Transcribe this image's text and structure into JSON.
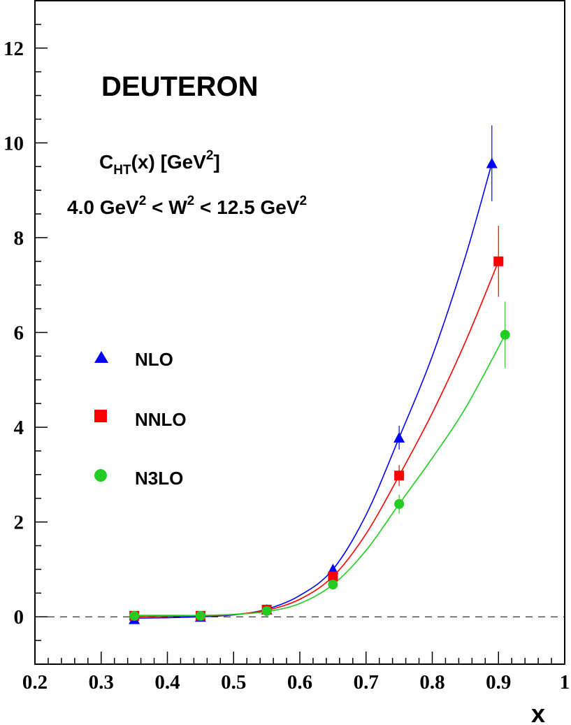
{
  "chart_data": {
    "type": "line",
    "title": "DEUTERON",
    "annotations": {
      "quantity": "C",
      "quantity_sub": "HT",
      "quantity_arg": "(x) [GeV",
      "quantity_sup": "2",
      "quantity_close": "]",
      "range_part1": "4.0 GeV",
      "range_sup1": "2",
      "range_part2": " < W",
      "range_sup2": "2",
      "range_part3": " < 12.5 GeV",
      "range_sup3": "2"
    },
    "xlabel": "x",
    "ylabel": "",
    "xlim": [
      0.2,
      1.0
    ],
    "ylim": [
      -1,
      13
    ],
    "x_ticks": [
      0.2,
      0.3,
      0.4,
      0.5,
      0.6,
      0.7,
      0.8,
      0.9,
      1.0
    ],
    "x_tick_labels": [
      "0.2",
      "0.3",
      "0.4",
      "0.5",
      "0.6",
      "0.7",
      "0.8",
      "0.9",
      "1"
    ],
    "y_ticks": [
      0,
      2,
      4,
      6,
      8,
      10,
      12
    ],
    "y_tick_labels": [
      "0",
      "2",
      "4",
      "6",
      "8",
      "10",
      "12"
    ],
    "zero_line": true,
    "grid": false,
    "legend_position": "left",
    "series": [
      {
        "name": "NLO",
        "marker": "triangle",
        "color": "#0000ff",
        "points": [
          {
            "x": 0.35,
            "y": -0.05,
            "err": 0.04
          },
          {
            "x": 0.45,
            "y": 0.0,
            "err": 0.04
          },
          {
            "x": 0.55,
            "y": 0.15,
            "err": 0.05
          },
          {
            "x": 0.65,
            "y": 1.0,
            "err": 0.1
          },
          {
            "x": 0.75,
            "y": 3.78,
            "err": 0.25
          },
          {
            "x": 0.89,
            "y": 9.57,
            "err": 0.8
          }
        ],
        "curve": [
          [
            0.35,
            -0.03
          ],
          [
            0.4,
            -0.02
          ],
          [
            0.45,
            0.0
          ],
          [
            0.5,
            0.04
          ],
          [
            0.55,
            0.16
          ],
          [
            0.6,
            0.45
          ],
          [
            0.65,
            1.0
          ],
          [
            0.7,
            2.15
          ],
          [
            0.75,
            3.78
          ],
          [
            0.8,
            5.5
          ],
          [
            0.85,
            7.6
          ],
          [
            0.89,
            9.57
          ]
        ]
      },
      {
        "name": "NNLO",
        "marker": "square",
        "color": "#ff0000",
        "points": [
          {
            "x": 0.35,
            "y": 0.02,
            "err": 0.04
          },
          {
            "x": 0.45,
            "y": 0.02,
            "err": 0.04
          },
          {
            "x": 0.55,
            "y": 0.15,
            "err": 0.05
          },
          {
            "x": 0.65,
            "y": 0.85,
            "err": 0.1
          },
          {
            "x": 0.75,
            "y": 2.98,
            "err": 0.22
          },
          {
            "x": 0.9,
            "y": 7.5,
            "err": 0.75
          }
        ],
        "curve": [
          [
            0.35,
            0.0
          ],
          [
            0.4,
            0.01
          ],
          [
            0.45,
            0.02
          ],
          [
            0.5,
            0.05
          ],
          [
            0.55,
            0.14
          ],
          [
            0.6,
            0.37
          ],
          [
            0.65,
            0.85
          ],
          [
            0.7,
            1.75
          ],
          [
            0.75,
            2.98
          ],
          [
            0.8,
            4.3
          ],
          [
            0.85,
            5.8
          ],
          [
            0.9,
            7.5
          ]
        ]
      },
      {
        "name": "N3LO",
        "marker": "circle",
        "color": "#22cc22",
        "points": [
          {
            "x": 0.35,
            "y": 0.02,
            "err": 0.04
          },
          {
            "x": 0.45,
            "y": 0.02,
            "err": 0.04
          },
          {
            "x": 0.55,
            "y": 0.12,
            "err": 0.05
          },
          {
            "x": 0.65,
            "y": 0.68,
            "err": 0.1
          },
          {
            "x": 0.75,
            "y": 2.38,
            "err": 0.2
          },
          {
            "x": 0.91,
            "y": 5.95,
            "err": 0.7
          }
        ],
        "curve": [
          [
            0.35,
            0.03
          ],
          [
            0.4,
            0.03
          ],
          [
            0.45,
            0.03
          ],
          [
            0.5,
            0.05
          ],
          [
            0.55,
            0.11
          ],
          [
            0.6,
            0.28
          ],
          [
            0.65,
            0.68
          ],
          [
            0.7,
            1.4
          ],
          [
            0.75,
            2.38
          ],
          [
            0.8,
            3.35
          ],
          [
            0.85,
            4.4
          ],
          [
            0.91,
            5.95
          ]
        ]
      }
    ]
  }
}
